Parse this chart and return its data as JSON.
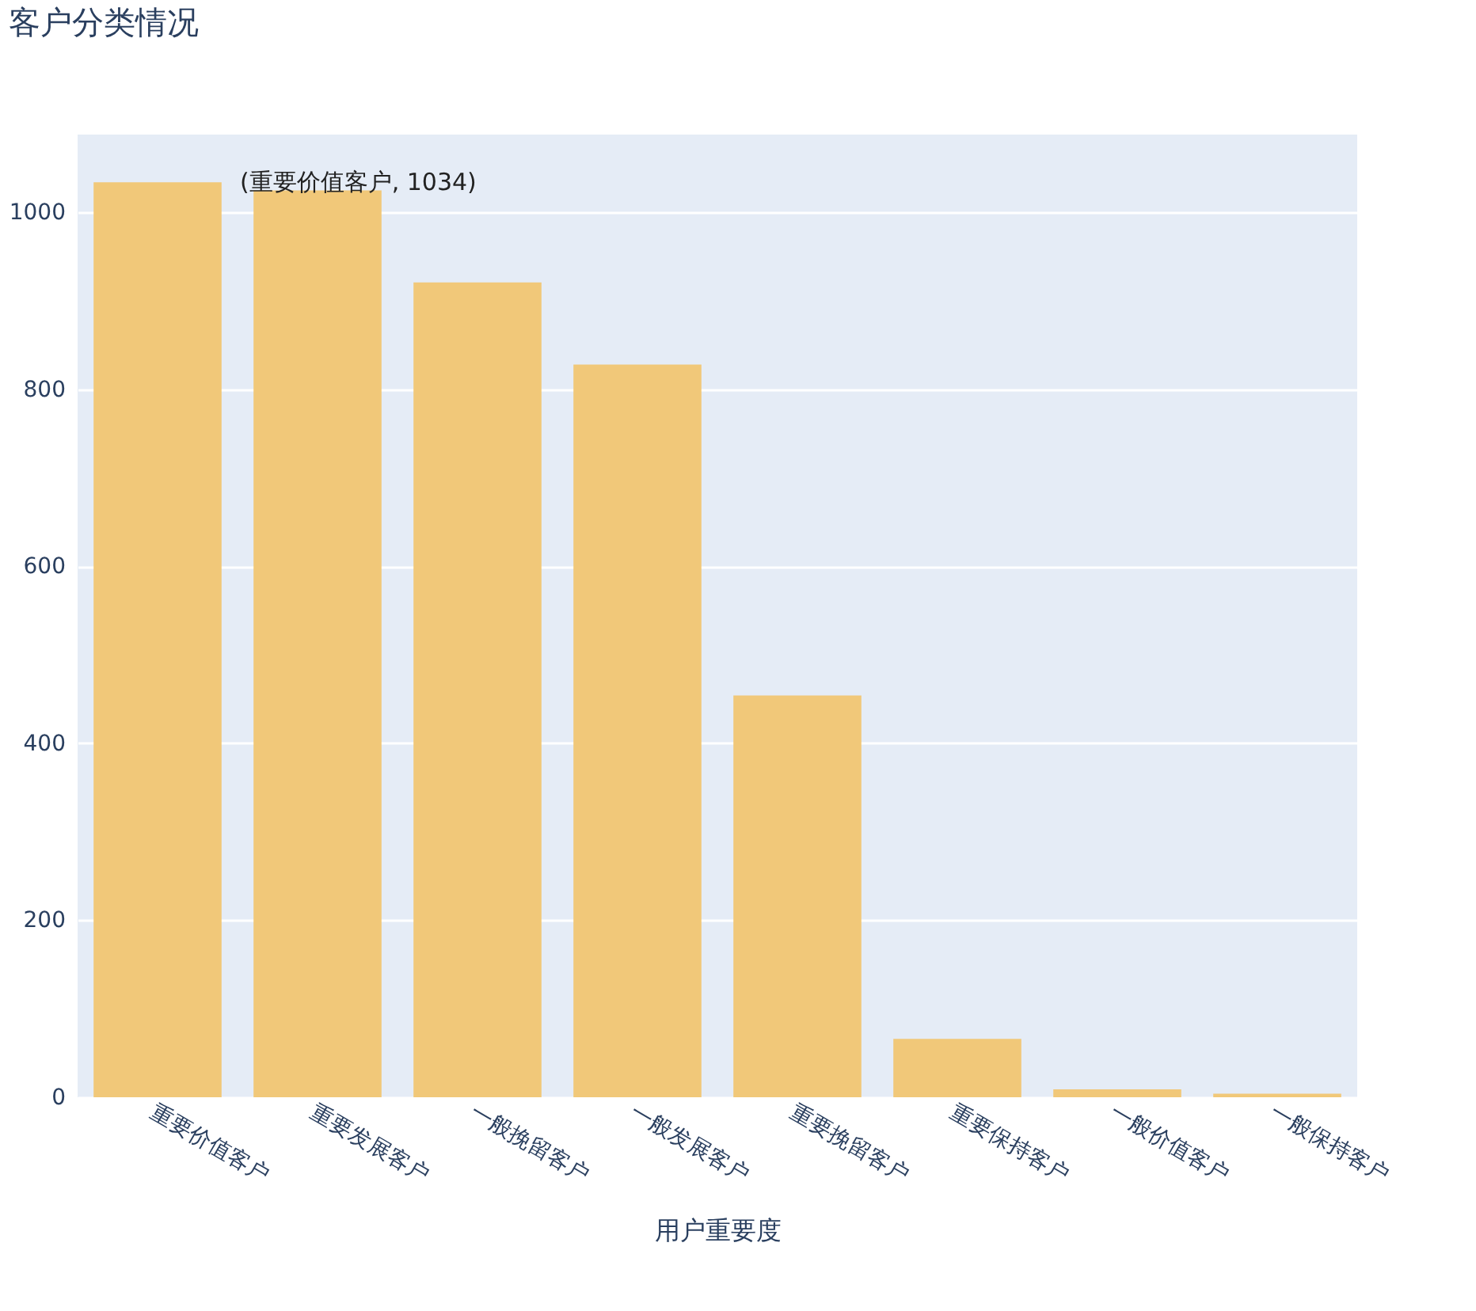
{
  "chart_data": {
    "type": "bar",
    "title": "客户分类情况",
    "xlabel": "用户重要度",
    "categories": [
      "重要价值客户",
      "重要发展客户",
      "一般挽留客户",
      "一般发展客户",
      "重要挽留客户",
      "重要保持客户",
      "一般价值客户",
      "一般保持客户"
    ],
    "values": [
      1034,
      1025,
      921,
      828,
      454,
      66,
      9,
      4
    ],
    "color": "#f1c879",
    "ylim": [
      0,
      1088
    ],
    "yticks": [
      0,
      200,
      400,
      600,
      800,
      {
        "value": 1000,
        "label": "1000"
      }
    ],
    "grid": "y",
    "annotations": [
      {
        "text": "(重要价值客户, 1034)",
        "x": "重要价值客户",
        "y": 1034
      }
    ]
  }
}
